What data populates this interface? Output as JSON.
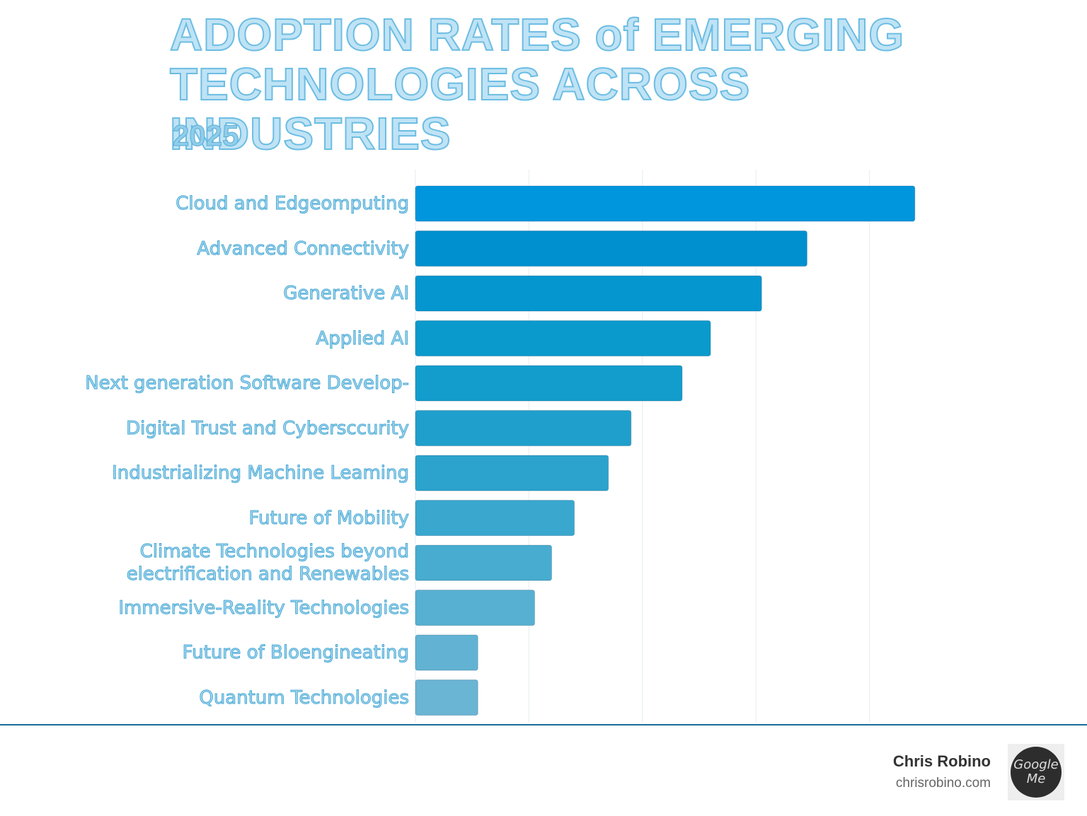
{
  "chart_data": {
    "type": "hbar",
    "title": "ADOPTION RATES of EMERGING TECHNOLOGIES ACROSS INDUSTRIES",
    "subtitle": "2025",
    "categories": [
      "Cloud and Edgeomputing",
      "Advanced Connectivity",
      "Generative AI",
      "Applied AI",
      "Next generation Software Develop-",
      "Digital Trust and Cybersccurity",
      "Industrializing Machine Leaming",
      "Future of Mobility",
      "Climate Technologies beyond\nelectrification and Renewables",
      "Immersive-Reality Technologies",
      "Future of Bloengineating",
      "Quantum Technologies"
    ],
    "values": [
      88,
      69,
      61,
      52,
      47,
      38,
      34,
      28,
      24,
      21,
      11,
      11
    ],
    "colors": [
      "#0096dd",
      "#0090cf",
      "#0596cf",
      "#0a9acc",
      "#139dcc",
      "#1f9fcb",
      "#2ca3cc",
      "#39a7ce",
      "#48acd0",
      "#57b0d2",
      "#62b3d3",
      "#6ab4d4"
    ],
    "xlim": [
      0,
      100
    ],
    "xticks": [
      0,
      20,
      40,
      60,
      80
    ],
    "grid": true,
    "tick_labels": false
  },
  "footer": {
    "name": "Chris Robino",
    "site": "chrisrobino.com",
    "badge": "Google Me"
  }
}
